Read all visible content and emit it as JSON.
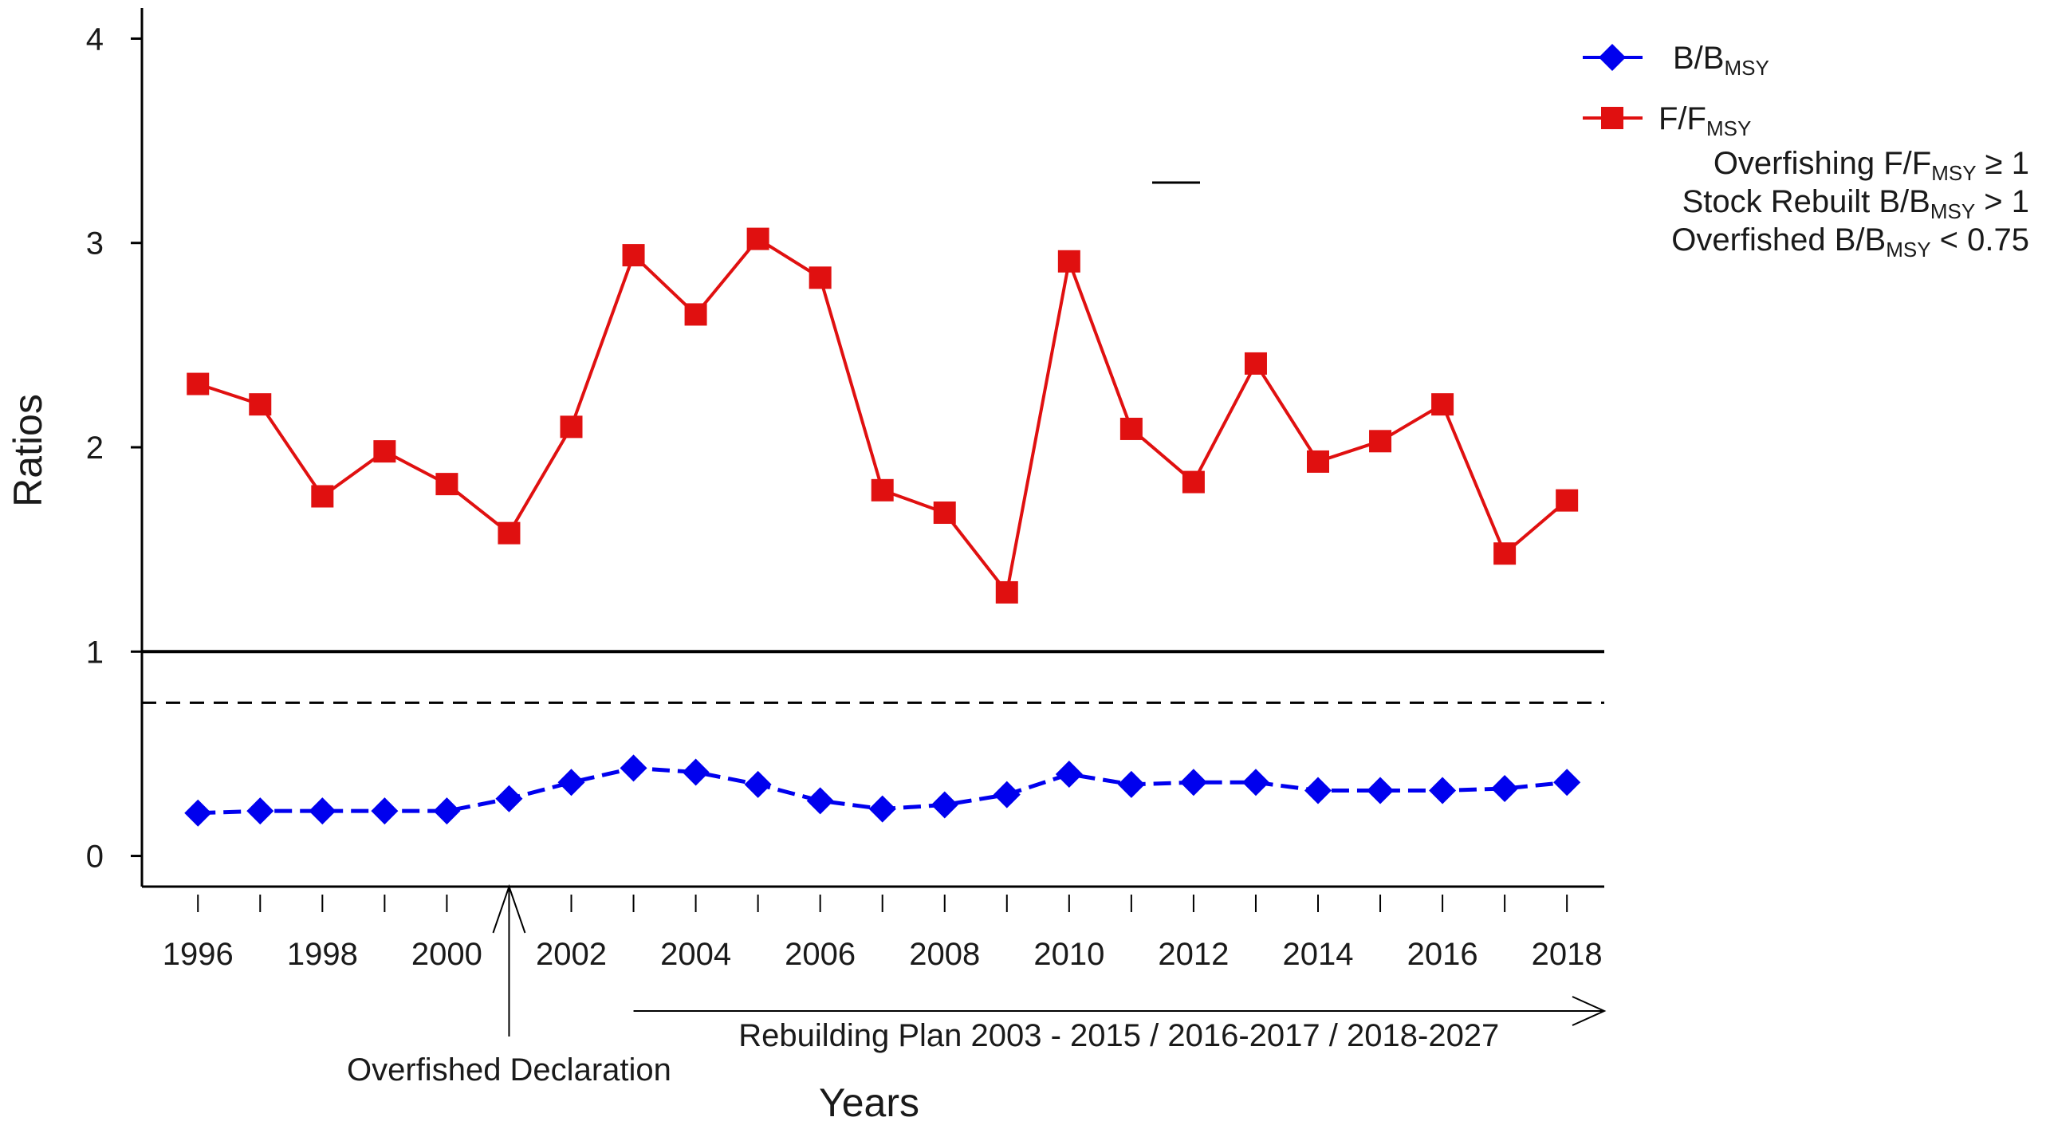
{
  "chart_data": {
    "type": "line",
    "xlabel": "Years",
    "ylabel": "Ratios",
    "xlim": [
      1995.1,
      2018.6
    ],
    "ylim": [
      -0.15,
      4.15
    ],
    "x_ticks": [
      1996,
      1997,
      1998,
      1999,
      2000,
      2001,
      2002,
      2003,
      2004,
      2005,
      2006,
      2007,
      2008,
      2009,
      2010,
      2011,
      2012,
      2013,
      2014,
      2015,
      2016,
      2017,
      2018
    ],
    "x_tick_labels": [
      "1996",
      "1998",
      "2000",
      "2002",
      "2004",
      "2006",
      "2008",
      "2010",
      "2012",
      "2014",
      "2016",
      "2018"
    ],
    "y_ticks": [
      0,
      1,
      2,
      3,
      4
    ],
    "y_tick_labels": [
      "0",
      "1",
      "2",
      "3",
      "4"
    ],
    "x": [
      1996,
      1997,
      1998,
      1999,
      2000,
      2001,
      2002,
      2003,
      2004,
      2005,
      2006,
      2007,
      2008,
      2009,
      2010,
      2011,
      2012,
      2013,
      2014,
      2015,
      2016,
      2017,
      2018
    ],
    "series": [
      {
        "name": "B/B",
        "name_sub": "MSY",
        "color": "#0000ee",
        "marker": "diamond",
        "line_style": "dashed",
        "values": [
          0.21,
          0.22,
          0.22,
          0.22,
          0.22,
          0.28,
          0.36,
          0.43,
          0.41,
          0.35,
          0.27,
          0.23,
          0.25,
          0.3,
          0.4,
          0.35,
          0.36,
          0.36,
          0.32,
          0.32,
          0.32,
          0.33,
          0.36
        ]
      },
      {
        "name": "F/F",
        "name_sub": "MSY",
        "color": "#e01010",
        "marker": "square",
        "line_style": "solid",
        "values": [
          2.31,
          2.21,
          1.76,
          1.98,
          1.82,
          1.58,
          2.1,
          2.94,
          2.65,
          3.02,
          2.83,
          1.79,
          1.68,
          1.29,
          2.91,
          2.09,
          1.83,
          2.41,
          1.93,
          2.03,
          2.21,
          1.48,
          1.74
        ]
      }
    ],
    "reference_lines": [
      {
        "y": 1,
        "style": "solid",
        "color": "#000000"
      },
      {
        "y": 0.75,
        "style": "dashed",
        "color": "#000000"
      }
    ],
    "legend": {
      "placement": "top-right",
      "extra_entries": [
        {
          "pre": "Overfishing F/F",
          "sub": "MSY",
          "post": " ≥ 1"
        },
        {
          "pre": "Stock Rebuilt B/B",
          "sub": "MSY",
          "post": " > 1"
        },
        {
          "pre": "Overfished B/B",
          "sub": "MSY",
          "post": " < 0.75"
        }
      ]
    },
    "annotations": {
      "overfished_declaration": {
        "text": "Overfished Declaration",
        "x": 2001
      },
      "rebuilding_plan": {
        "text": "Rebuilding Plan 2003 - 2015 / 2016-2017 / 2018-2027",
        "x_start": 2003,
        "x_end": 2018.6
      }
    },
    "grid": false
  }
}
